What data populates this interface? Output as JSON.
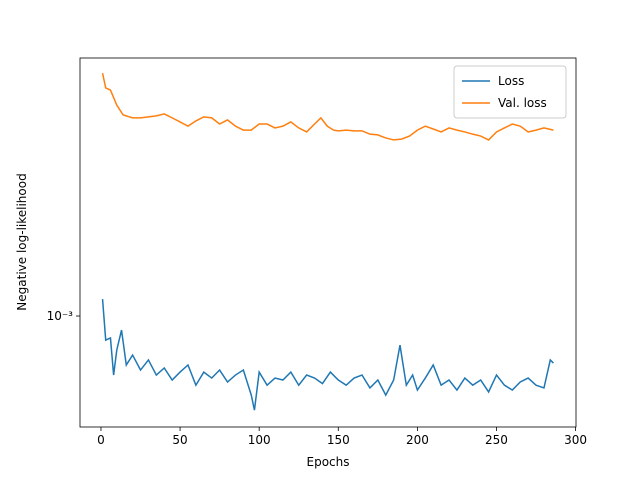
{
  "chart_data": {
    "type": "line",
    "xlabel": "Epochs",
    "ylabel": "Negative log-likelihood",
    "xlim": [
      -13.25,
      300.25
    ],
    "xticks": [
      0,
      50,
      100,
      150,
      200,
      250,
      300
    ],
    "ylim": [
      0.00045,
      0.0064
    ],
    "yscale": "log",
    "yticks": [
      {
        "value": 0.001,
        "label": "10⁻³"
      }
    ],
    "grid": false,
    "legend": "upper right",
    "series": [
      {
        "name": "Loss",
        "color": "#1f77b4",
        "x": [
          1,
          3,
          6,
          8,
          10,
          13,
          16,
          20,
          25,
          30,
          35,
          40,
          45,
          50,
          55,
          60,
          65,
          70,
          75,
          80,
          85,
          90,
          95,
          97,
          100,
          105,
          110,
          115,
          120,
          125,
          130,
          135,
          140,
          145,
          150,
          155,
          160,
          165,
          170,
          175,
          180,
          185,
          189,
          193,
          197,
          200,
          205,
          210,
          215,
          220,
          225,
          230,
          235,
          240,
          245,
          250,
          255,
          260,
          265,
          270,
          275,
          280,
          284,
          286
        ],
        "values": [
          0.00113,
          0.000841,
          0.000854,
          0.000654,
          0.000783,
          0.000904,
          0.000703,
          0.000755,
          0.000678,
          0.000729,
          0.000654,
          0.000688,
          0.000631,
          0.000668,
          0.000703,
          0.000608,
          0.000668,
          0.00064,
          0.000678,
          0.000622,
          0.000654,
          0.000678,
          0.000566,
          0.000508,
          0.000668,
          0.000608,
          0.00064,
          0.000631,
          0.000668,
          0.000608,
          0.000654,
          0.00064,
          0.000615,
          0.000668,
          0.000631,
          0.000608,
          0.00064,
          0.000654,
          0.000596,
          0.000631,
          0.000566,
          0.000631,
          0.000811,
          0.000608,
          0.000654,
          0.000587,
          0.00064,
          0.000703,
          0.000608,
          0.000631,
          0.000587,
          0.00064,
          0.000608,
          0.000631,
          0.000579,
          0.000654,
          0.000608,
          0.000587,
          0.000622,
          0.00064,
          0.000608,
          0.000596,
          0.000729,
          0.000713
        ]
      },
      {
        "name": "Val. loss",
        "color": "#ff7f0e",
        "x": [
          1,
          3,
          6,
          10,
          14,
          20,
          25,
          30,
          35,
          40,
          45,
          50,
          55,
          60,
          65,
          70,
          75,
          80,
          85,
          90,
          95,
          100,
          105,
          110,
          115,
          120,
          125,
          130,
          135,
          139,
          143,
          147,
          150,
          155,
          160,
          165,
          170,
          175,
          180,
          185,
          190,
          195,
          200,
          205,
          210,
          215,
          220,
          225,
          230,
          235,
          240,
          245,
          250,
          255,
          260,
          265,
          270,
          275,
          280,
          286
        ],
        "values": [
          0.00574,
          0.00516,
          0.00508,
          0.00456,
          0.00425,
          0.00416,
          0.00416,
          0.00419,
          0.00422,
          0.00428,
          0.00416,
          0.00404,
          0.00392,
          0.00407,
          0.00419,
          0.00416,
          0.00398,
          0.0041,
          0.00392,
          0.00381,
          0.00381,
          0.00398,
          0.00398,
          0.00387,
          0.00392,
          0.00404,
          0.00387,
          0.00376,
          0.00398,
          0.00416,
          0.00392,
          0.00381,
          0.00379,
          0.00381,
          0.00379,
          0.00379,
          0.0037,
          0.00368,
          0.0036,
          0.00355,
          0.00357,
          0.00365,
          0.00381,
          0.00392,
          0.00384,
          0.00376,
          0.00387,
          0.00381,
          0.00376,
          0.0037,
          0.00365,
          0.00355,
          0.00376,
          0.00387,
          0.00398,
          0.00392,
          0.00376,
          0.00381,
          0.00387,
          0.00381
        ]
      }
    ]
  }
}
